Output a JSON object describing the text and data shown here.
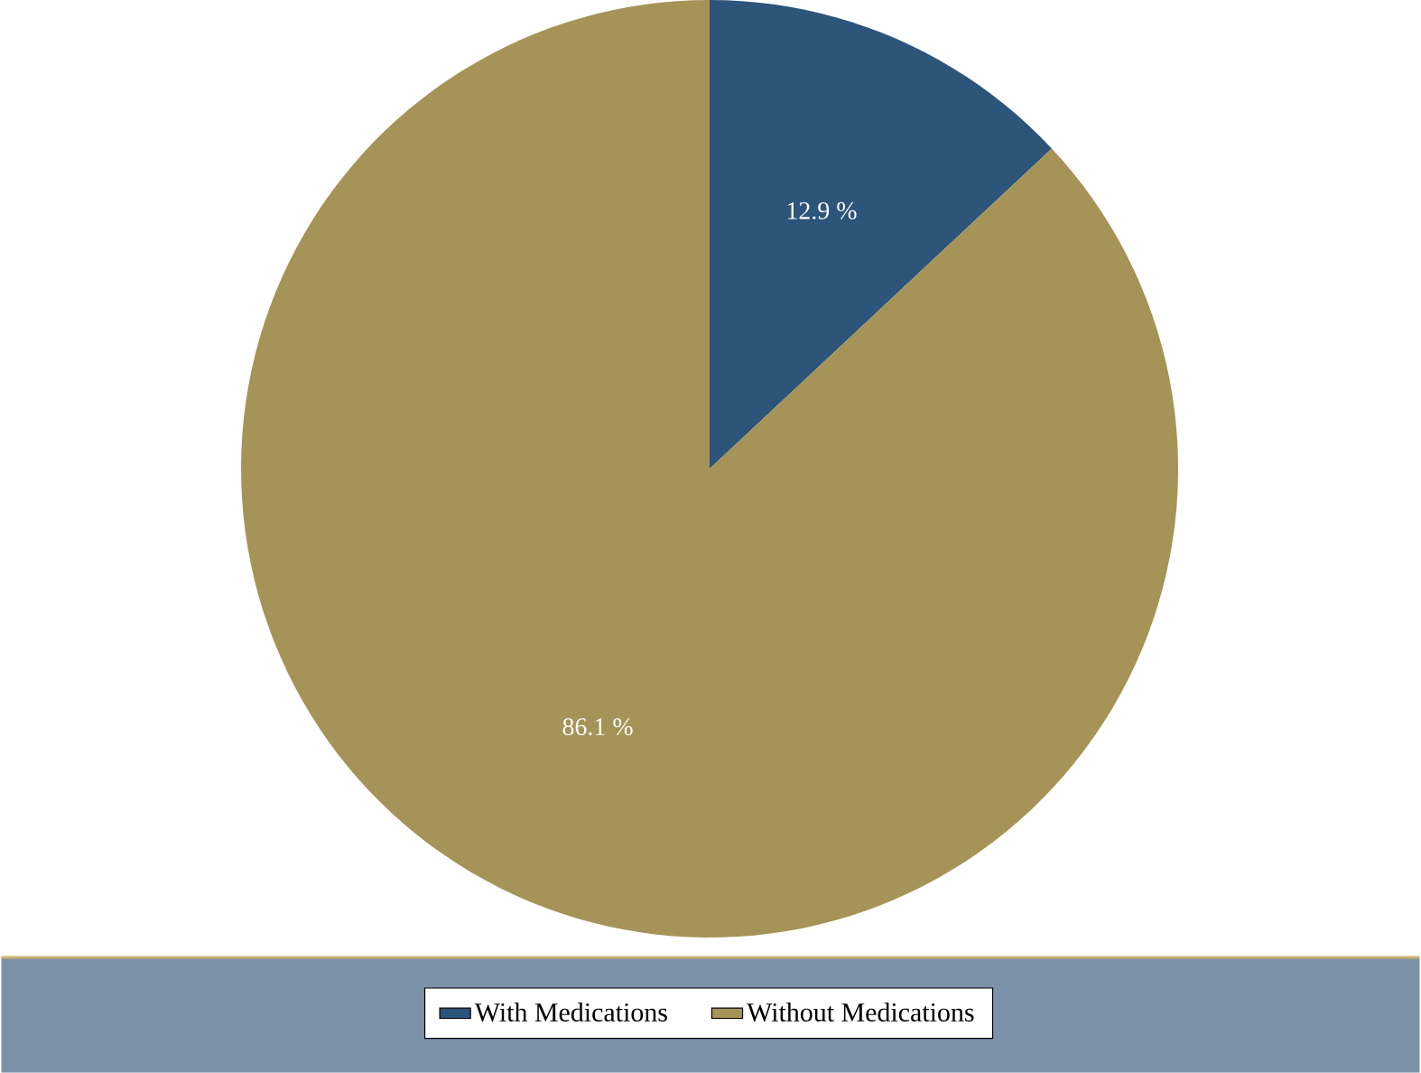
{
  "chart_data": {
    "type": "pie",
    "categories": [
      "With Medications",
      "Without Medications"
    ],
    "values": [
      12.9,
      86.1
    ],
    "colors": [
      "#2d5479",
      "#a69357"
    ],
    "value_labels": [
      "12.9 %",
      "86.1 %"
    ],
    "legend": "bottom"
  }
}
